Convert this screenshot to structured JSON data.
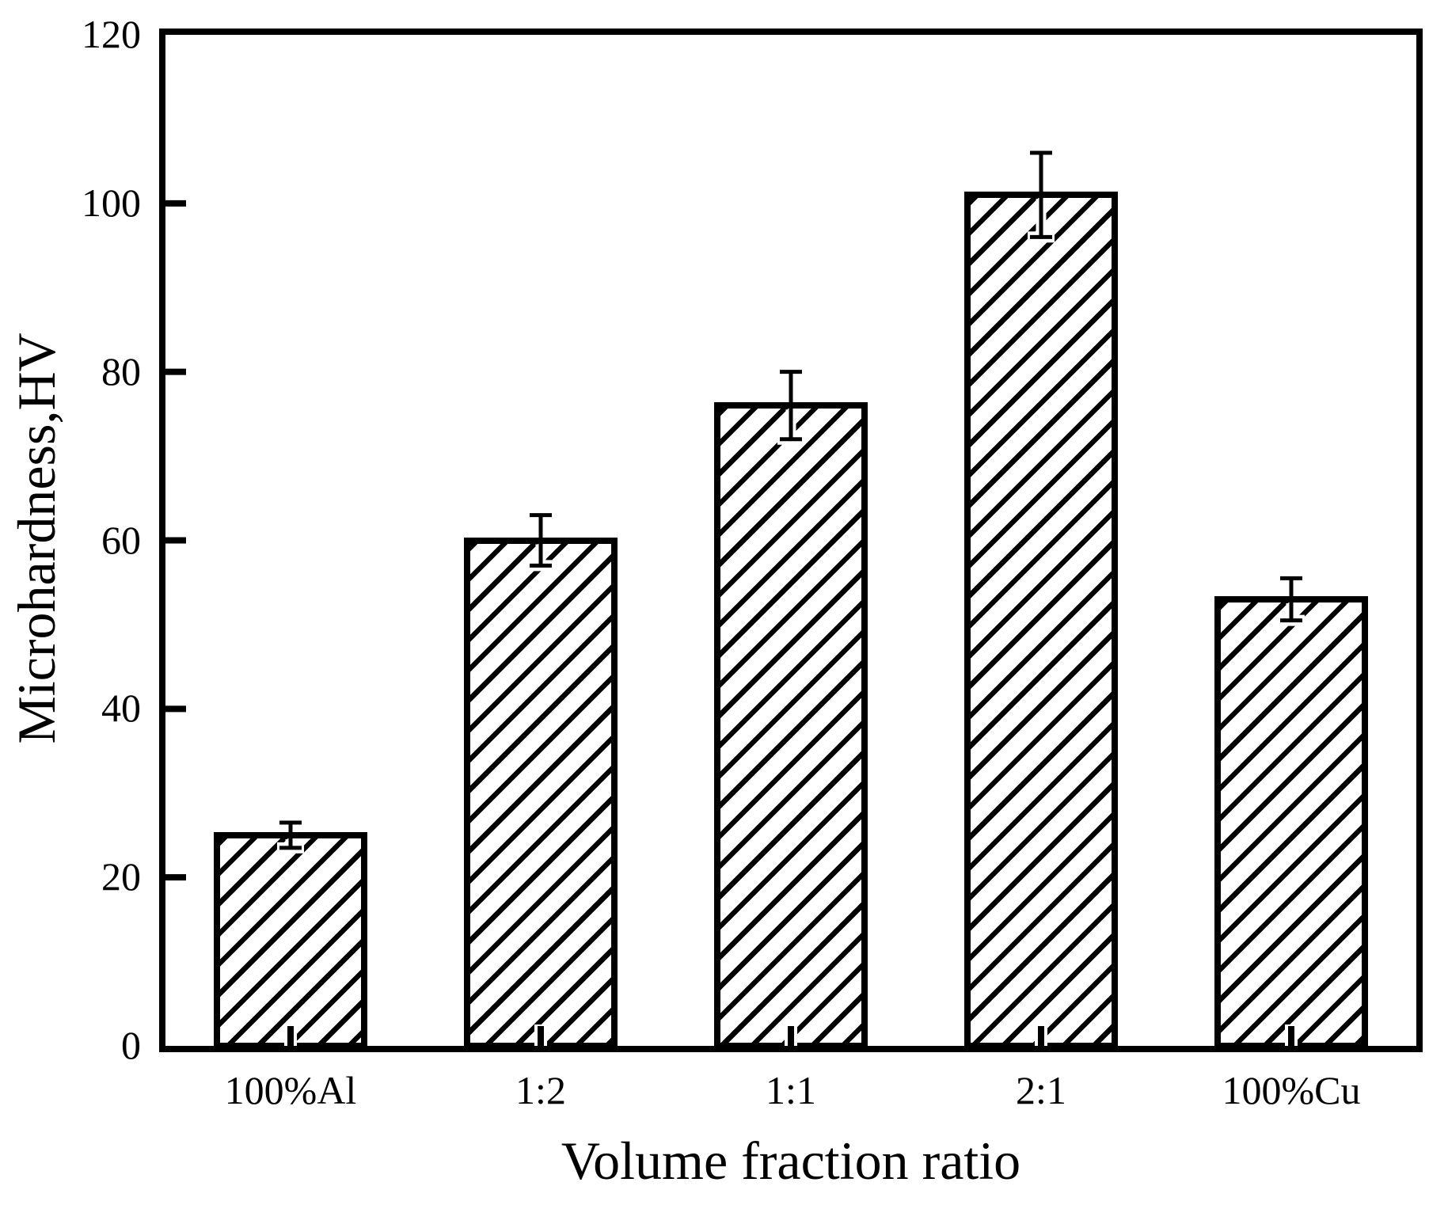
{
  "chart_data": {
    "type": "bar",
    "title": "",
    "xlabel": "Volume fraction ratio",
    "ylabel": "Microhardness,HV",
    "categories": [
      "100%Al",
      "1:2",
      "1:1",
      "2:1",
      "100%Cu"
    ],
    "values": [
      25,
      60,
      76,
      101,
      53
    ],
    "errors": [
      1.5,
      3,
      4,
      5,
      2.5
    ],
    "ylim": [
      0,
      120
    ],
    "yticks": [
      0,
      20,
      40,
      60,
      80,
      100,
      120
    ],
    "grid": false,
    "legend": "none",
    "style": {
      "bar_fill": "diagonal-hatch",
      "foreground_color": "#000000",
      "background_color": "#ffffff",
      "tick_direction": "in"
    }
  }
}
